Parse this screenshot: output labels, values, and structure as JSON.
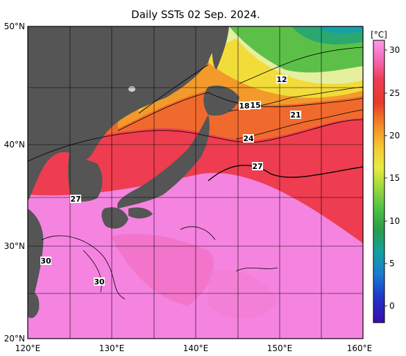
{
  "title": "Daily SSTs 02 Sep. 2024.",
  "colorbar": {
    "unit": "[°C]",
    "ticks": [
      "30",
      "25",
      "20",
      "15",
      "10",
      "5",
      "0"
    ],
    "tick_values": [
      30,
      25,
      20,
      15,
      10,
      5,
      0
    ],
    "range": [
      -2,
      32
    ]
  },
  "map": {
    "lat_range": [
      20,
      50
    ],
    "lon_range": [
      120,
      160
    ],
    "lat_labels": [
      {
        "value": 50,
        "text": "50°N"
      },
      {
        "value": 40,
        "text": "40°N"
      },
      {
        "value": 30,
        "text": "30°N"
      },
      {
        "value": 20,
        "text": "20°N"
      }
    ],
    "lon_labels": [
      {
        "value": 120,
        "text": "120°E"
      },
      {
        "value": 130,
        "text": "130°E"
      },
      {
        "value": 140,
        "text": "140°E"
      },
      {
        "value": 150,
        "text": "150°E"
      },
      {
        "value": 160,
        "text": "160°E"
      }
    ],
    "isotherm_labels": [
      "12",
      "18",
      "15",
      "21",
      "24",
      "27",
      "27",
      "30",
      "30"
    ]
  },
  "colors": {
    "land": "#555555",
    "ocean_hot": "#f584e0",
    "ocean_warm": "#ee3d4c",
    "ocean_mid": "#f08030",
    "ocean_yellow": "#f0e040",
    "ocean_cool": "#62c24c"
  }
}
